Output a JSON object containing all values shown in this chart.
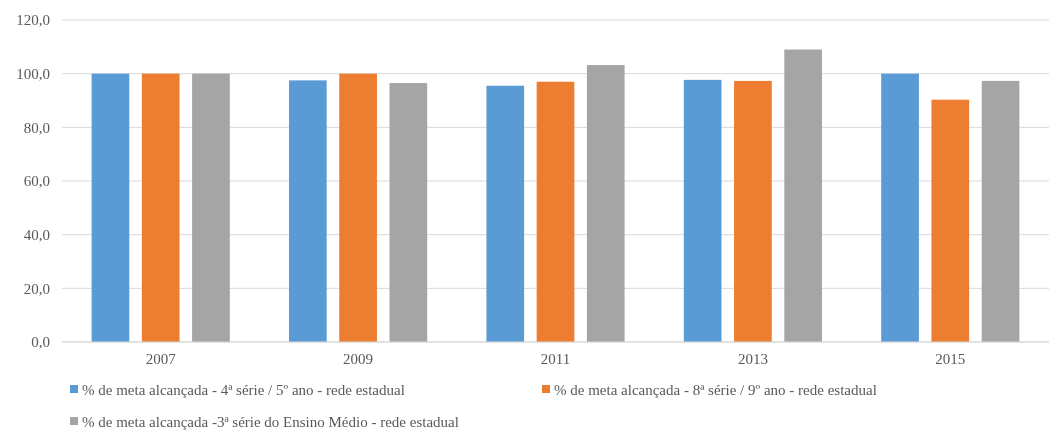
{
  "chart_data": {
    "type": "bar",
    "categories": [
      "2007",
      "2009",
      "2011",
      "2013",
      "2015"
    ],
    "series": [
      {
        "name": "% de meta alcançada - 4ª série / 5º ano - rede estadual",
        "color": "#5b9bd5",
        "values": [
          100,
          97.5,
          95.5,
          97.7,
          100
        ]
      },
      {
        "name": "% de meta alcançada - 8ª série / 9º ano - rede estadual",
        "color": "#ed7d31",
        "values": [
          100,
          100,
          97.0,
          97.3,
          90.3
        ]
      },
      {
        "name": "% de meta alcançada -3ª série do Ensino Médio - rede estadual",
        "color": "#a5a5a5",
        "values": [
          100,
          96.5,
          103.2,
          109.0,
          97.3
        ]
      }
    ],
    "ylim": [
      0,
      120
    ],
    "yticks": [
      {
        "value": 0,
        "label": "0,0"
      },
      {
        "value": 20,
        "label": "20,0"
      },
      {
        "value": 40,
        "label": "40,0"
      },
      {
        "value": 60,
        "label": "60,0"
      },
      {
        "value": 80,
        "label": "80,0"
      },
      {
        "value": 100,
        "label": "100,0"
      },
      {
        "value": 120,
        "label": "120,0"
      }
    ],
    "grid": "y",
    "legend": "bottom"
  }
}
